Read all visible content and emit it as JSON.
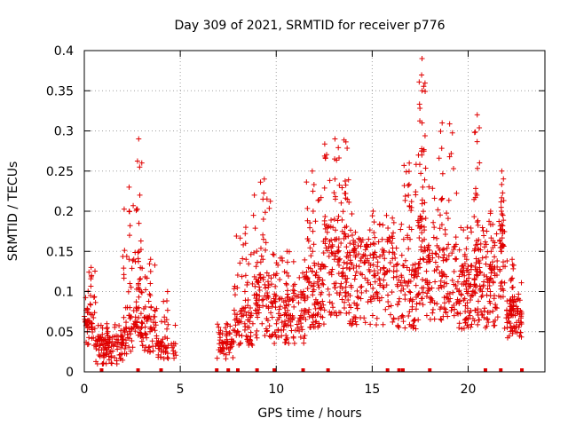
{
  "chart_data": {
    "type": "scatter",
    "title": "Day 309 of 2021, SRMTID for receiver p776",
    "xlabel": "GPS time / hours",
    "ylabel": "SRMTID / TECUs",
    "xlim": [
      0,
      24
    ],
    "ylim": [
      0,
      0.4
    ],
    "grid": true,
    "marker": "+",
    "color": "#e00000",
    "x_ticks": [
      {
        "value": 0,
        "label": "0"
      },
      {
        "value": 5,
        "label": "5"
      },
      {
        "value": 10,
        "label": "10"
      },
      {
        "value": 15,
        "label": "15"
      },
      {
        "value": 20,
        "label": "20"
      }
    ],
    "y_ticks": [
      {
        "value": 0,
        "label": "0"
      },
      {
        "value": 0.05,
        "label": "0.05"
      },
      {
        "value": 0.1,
        "label": "0.1"
      },
      {
        "value": 0.15,
        "label": "0.15"
      },
      {
        "value": 0.2,
        "label": "0.2"
      },
      {
        "value": 0.25,
        "label": "0.25"
      },
      {
        "value": 0.3,
        "label": "0.3"
      },
      {
        "value": 0.35,
        "label": "0.35"
      },
      {
        "value": 0.4,
        "label": "0.4"
      }
    ],
    "baseline_markers_x": [
      0.9,
      2.8,
      4.0,
      6.9,
      7.5,
      8.0,
      9.0,
      9.9,
      11.4,
      12.7,
      15.8,
      16.4,
      16.6,
      18.0,
      20.9,
      21.7,
      22.8
    ],
    "segments": [
      {
        "x_start": 0.0,
        "x_end": 0.6,
        "y_min": 0.02,
        "y_typ": 0.06,
        "peak": 0.13,
        "n": 50
      },
      {
        "x_start": 0.6,
        "x_end": 2.0,
        "y_min": 0.0,
        "y_typ": 0.03,
        "peak": 0.06,
        "n": 110
      },
      {
        "x_start": 2.0,
        "x_end": 2.7,
        "y_min": 0.01,
        "y_typ": 0.05,
        "peak": 0.23,
        "n": 60
      },
      {
        "x_start": 2.7,
        "x_end": 3.0,
        "y_min": 0.02,
        "y_typ": 0.08,
        "peak": 0.29,
        "n": 40
      },
      {
        "x_start": 3.0,
        "x_end": 3.8,
        "y_min": 0.01,
        "y_typ": 0.05,
        "peak": 0.14,
        "n": 60
      },
      {
        "x_start": 3.8,
        "x_end": 4.8,
        "y_min": 0.01,
        "y_typ": 0.03,
        "peak": 0.1,
        "n": 50
      },
      {
        "x_start": 6.9,
        "x_end": 7.8,
        "y_min": 0.01,
        "y_typ": 0.03,
        "peak": 0.06,
        "n": 50
      },
      {
        "x_start": 7.8,
        "x_end": 8.8,
        "y_min": 0.02,
        "y_typ": 0.06,
        "peak": 0.18,
        "n": 80
      },
      {
        "x_start": 8.8,
        "x_end": 9.8,
        "y_min": 0.02,
        "y_typ": 0.09,
        "peak": 0.24,
        "n": 90
      },
      {
        "x_start": 9.8,
        "x_end": 11.5,
        "y_min": 0.02,
        "y_typ": 0.07,
        "peak": 0.15,
        "n": 140
      },
      {
        "x_start": 11.5,
        "x_end": 12.5,
        "y_min": 0.03,
        "y_typ": 0.1,
        "peak": 0.25,
        "n": 100
      },
      {
        "x_start": 12.5,
        "x_end": 13.8,
        "y_min": 0.04,
        "y_typ": 0.14,
        "peak": 0.29,
        "n": 140
      },
      {
        "x_start": 13.8,
        "x_end": 16.3,
        "y_min": 0.03,
        "y_typ": 0.12,
        "peak": 0.2,
        "n": 200
      },
      {
        "x_start": 16.3,
        "x_end": 17.4,
        "y_min": 0.03,
        "y_typ": 0.1,
        "peak": 0.26,
        "n": 100
      },
      {
        "x_start": 17.4,
        "x_end": 17.8,
        "y_min": 0.05,
        "y_typ": 0.15,
        "peak": 0.39,
        "n": 60
      },
      {
        "x_start": 17.8,
        "x_end": 19.5,
        "y_min": 0.04,
        "y_typ": 0.12,
        "peak": 0.31,
        "n": 140
      },
      {
        "x_start": 19.5,
        "x_end": 20.3,
        "y_min": 0.03,
        "y_typ": 0.1,
        "peak": 0.18,
        "n": 80
      },
      {
        "x_start": 20.3,
        "x_end": 20.6,
        "y_min": 0.03,
        "y_typ": 0.12,
        "peak": 0.32,
        "n": 50
      },
      {
        "x_start": 20.6,
        "x_end": 21.6,
        "y_min": 0.03,
        "y_typ": 0.1,
        "peak": 0.2,
        "n": 90
      },
      {
        "x_start": 21.6,
        "x_end": 21.9,
        "y_min": 0.05,
        "y_typ": 0.15,
        "peak": 0.25,
        "n": 40
      },
      {
        "x_start": 21.9,
        "x_end": 22.8,
        "y_min": 0.03,
        "y_typ": 0.07,
        "peak": 0.14,
        "n": 90
      }
    ]
  }
}
